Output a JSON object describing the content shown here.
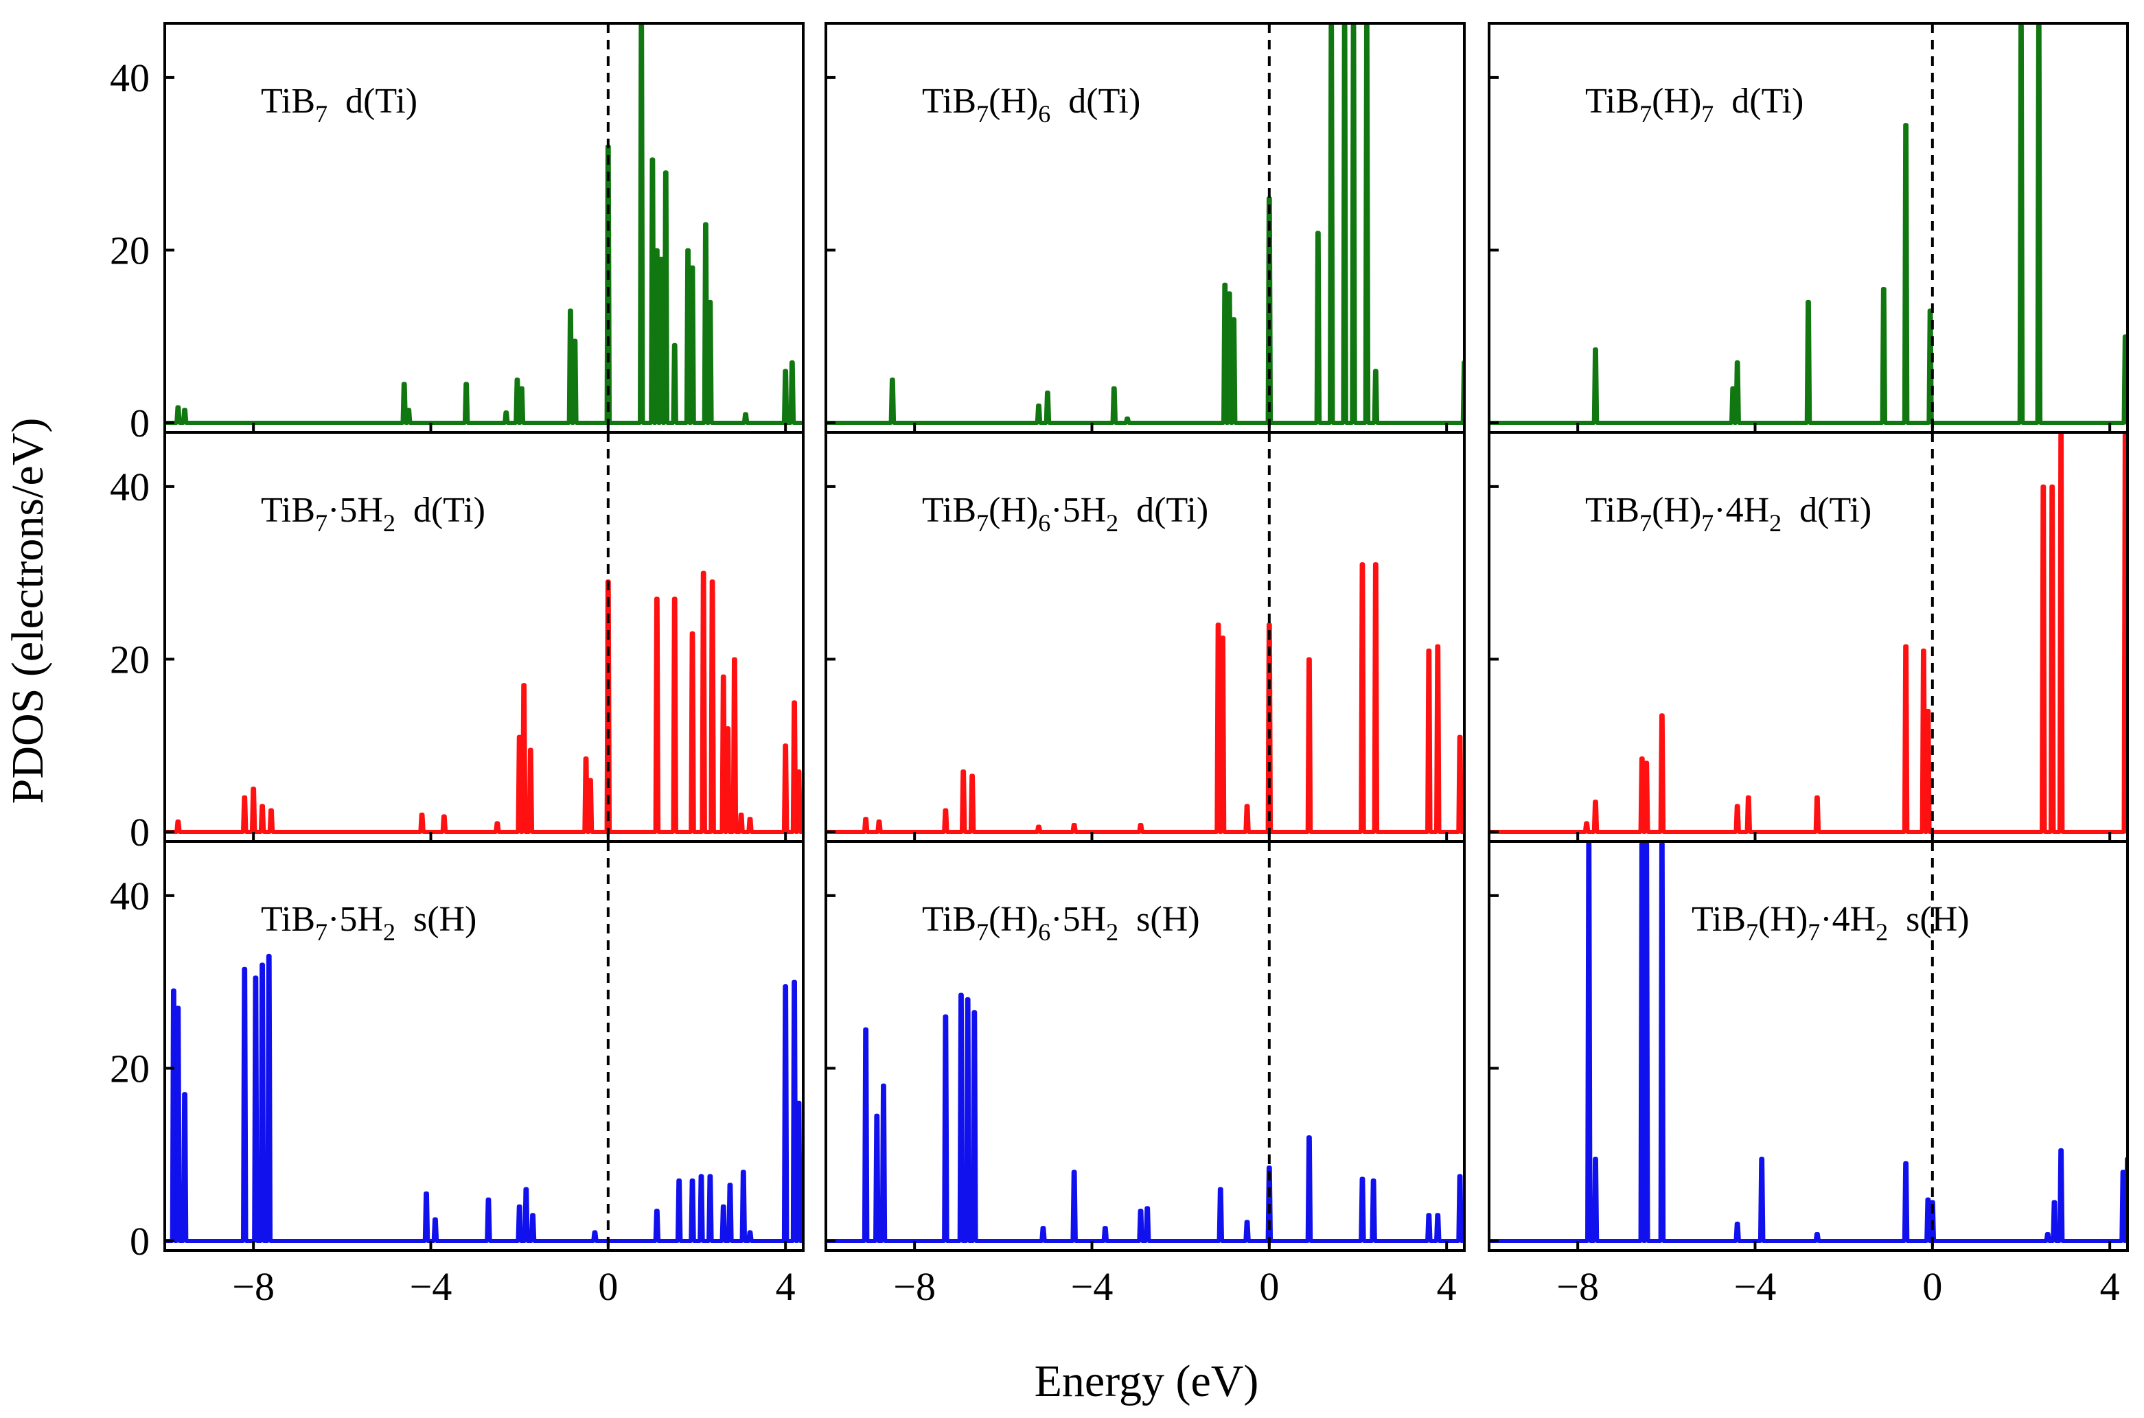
{
  "figure": {
    "ylabel": "PDOS (electrons/eV)",
    "xlabel": "Energy (eV)"
  },
  "chart_data": [
    {
      "type": "line",
      "row": 0,
      "col": 0,
      "color": "#117711",
      "title": "TiB7 d(Ti)",
      "label_main": "TiB",
      "label_sub1": "7",
      "label_rest": "  d(Ti)",
      "xlim": [
        -10,
        4.4
      ],
      "ylim": [
        0,
        45
      ],
      "xticks": [
        -8,
        -4,
        0,
        4
      ],
      "yticks": [
        0,
        20,
        40
      ],
      "xticklabels": [
        "−8",
        "−4",
        "0",
        "4"
      ],
      "yticklabels": [
        "0",
        "20",
        "40"
      ],
      "fermi_level": 0,
      "peaks": [
        [
          -9.7,
          1.8
        ],
        [
          -9.55,
          1.5
        ],
        [
          -4.6,
          4.5
        ],
        [
          -4.5,
          1.5
        ],
        [
          -3.2,
          4.5
        ],
        [
          -2.3,
          1.2
        ],
        [
          -2.05,
          5
        ],
        [
          -1.95,
          4
        ],
        [
          -0.85,
          13
        ],
        [
          -0.75,
          9.5
        ],
        [
          0,
          32
        ],
        [
          0.75,
          46
        ],
        [
          1.0,
          30.5
        ],
        [
          1.1,
          20
        ],
        [
          1.2,
          19
        ],
        [
          1.3,
          29
        ],
        [
          1.5,
          9
        ],
        [
          1.8,
          20
        ],
        [
          1.9,
          18
        ],
        [
          2.2,
          23
        ],
        [
          2.3,
          14
        ],
        [
          3.1,
          1
        ],
        [
          4.0,
          6
        ],
        [
          4.15,
          7
        ]
      ]
    },
    {
      "type": "line",
      "row": 0,
      "col": 1,
      "color": "#117711",
      "title": "TiB7(H)6 d(Ti)",
      "label_main": "TiB",
      "label_sub1": "7",
      "label_mid": "(H)",
      "label_sub2": "6",
      "label_rest": "  d(Ti)",
      "xlim": [
        -10,
        4.4
      ],
      "ylim": [
        0,
        45
      ],
      "xticks": [
        -8,
        -4,
        0,
        4
      ],
      "yticks": [
        0,
        20,
        40
      ],
      "xticklabels": [
        "−8",
        "−4",
        "0",
        "4"
      ],
      "yticklabels": [
        "0",
        "20",
        "40"
      ],
      "fermi_level": 0,
      "peaks": [
        [
          -8.5,
          5
        ],
        [
          -5.2,
          2
        ],
        [
          -5.0,
          3.5
        ],
        [
          -3.5,
          4
        ],
        [
          -3.2,
          0.5
        ],
        [
          -1.0,
          16
        ],
        [
          -0.9,
          15
        ],
        [
          -0.8,
          12
        ],
        [
          0,
          26
        ],
        [
          1.1,
          22
        ],
        [
          1.4,
          46
        ],
        [
          1.7,
          46
        ],
        [
          1.9,
          46
        ],
        [
          2.2,
          46
        ],
        [
          2.4,
          6
        ],
        [
          4.4,
          7
        ]
      ]
    },
    {
      "type": "line",
      "row": 0,
      "col": 2,
      "color": "#117711",
      "title": "TiB7(H)7 d(Ti)",
      "label_main": "TiB",
      "label_sub1": "7",
      "label_mid": "(H)",
      "label_sub2": "7",
      "label_rest": "  d(Ti)",
      "xlim": [
        -10,
        4.4
      ],
      "ylim": [
        0,
        45
      ],
      "xticks": [
        -8,
        -4,
        0,
        4
      ],
      "yticks": [
        0,
        20,
        40
      ],
      "xticklabels": [
        "−8",
        "−4",
        "0",
        "4"
      ],
      "yticklabels": [
        "0",
        "20",
        "40"
      ],
      "fermi_level": 0,
      "peaks": [
        [
          -7.6,
          8.5
        ],
        [
          -4.5,
          4
        ],
        [
          -4.4,
          7
        ],
        [
          -2.8,
          14
        ],
        [
          -1.1,
          15.5
        ],
        [
          -0.6,
          34.5
        ],
        [
          -0.05,
          13
        ],
        [
          2.0,
          46
        ],
        [
          2.4,
          46
        ],
        [
          4.35,
          10
        ]
      ]
    },
    {
      "type": "line",
      "row": 1,
      "col": 0,
      "color": "#ff1111",
      "title": "TiB7·5H2 d(Ti)",
      "label_main": "TiB",
      "label_sub1": "7",
      "label_mid": "·5H",
      "label_sub2": "2",
      "label_rest": "  d(Ti)",
      "xlim": [
        -10,
        4.4
      ],
      "ylim": [
        0,
        45
      ],
      "xticks": [
        -8,
        -4,
        0,
        4
      ],
      "yticks": [
        0,
        20,
        40
      ],
      "xticklabels": [
        "−8",
        "−4",
        "0",
        "4"
      ],
      "yticklabels": [
        "0",
        "20",
        "40"
      ],
      "fermi_level": 0,
      "peaks": [
        [
          -9.7,
          1.2
        ],
        [
          -8.2,
          4
        ],
        [
          -8.0,
          5
        ],
        [
          -7.8,
          3
        ],
        [
          -7.6,
          2.5
        ],
        [
          -4.2,
          2
        ],
        [
          -3.7,
          1.8
        ],
        [
          -2.5,
          1
        ],
        [
          -2.0,
          11
        ],
        [
          -1.9,
          17
        ],
        [
          -1.75,
          9.5
        ],
        [
          -0.5,
          8.5
        ],
        [
          -0.4,
          6
        ],
        [
          0,
          29
        ],
        [
          1.1,
          27
        ],
        [
          1.5,
          27
        ],
        [
          1.9,
          23
        ],
        [
          2.15,
          30
        ],
        [
          2.35,
          29
        ],
        [
          2.6,
          18
        ],
        [
          2.7,
          12
        ],
        [
          2.85,
          20
        ],
        [
          3.0,
          2
        ],
        [
          3.2,
          1.5
        ],
        [
          4.0,
          10
        ],
        [
          4.2,
          15
        ],
        [
          4.3,
          7
        ]
      ]
    },
    {
      "type": "line",
      "row": 1,
      "col": 1,
      "color": "#ff1111",
      "title": "TiB7(H)6·5H2 d(Ti)",
      "label_main": "TiB",
      "label_sub1": "7",
      "label_mid": "(H)",
      "label_sub2": "6",
      "label_mid2": "·5H",
      "label_sub3": "2",
      "label_rest": "  d(Ti)",
      "xlim": [
        -10,
        4.4
      ],
      "ylim": [
        0,
        45
      ],
      "xticks": [
        -8,
        -4,
        0,
        4
      ],
      "yticks": [
        0,
        20,
        40
      ],
      "xticklabels": [
        "−8",
        "−4",
        "0",
        "4"
      ],
      "yticklabels": [
        "0",
        "20",
        "40"
      ],
      "fermi_level": 0,
      "peaks": [
        [
          -9.1,
          1.5
        ],
        [
          -8.8,
          1.2
        ],
        [
          -7.3,
          2.5
        ],
        [
          -6.9,
          7
        ],
        [
          -6.7,
          6.5
        ],
        [
          -5.2,
          0.6
        ],
        [
          -4.4,
          0.8
        ],
        [
          -2.9,
          0.8
        ],
        [
          -1.15,
          24
        ],
        [
          -1.05,
          22.5
        ],
        [
          -0.5,
          3
        ],
        [
          0,
          24
        ],
        [
          0.9,
          20
        ],
        [
          2.1,
          31
        ],
        [
          2.4,
          31
        ],
        [
          3.6,
          21
        ],
        [
          3.8,
          21.5
        ],
        [
          4.3,
          11
        ]
      ]
    },
    {
      "type": "line",
      "row": 1,
      "col": 2,
      "color": "#ff1111",
      "title": "TiB7(H)7·4H2 d(Ti)",
      "label_main": "TiB",
      "label_sub1": "7",
      "label_mid": "(H)",
      "label_sub2": "7",
      "label_mid2": "·4H",
      "label_sub3": "2",
      "label_rest": "  d(Ti)",
      "xlim": [
        -10,
        4.4
      ],
      "ylim": [
        0,
        45
      ],
      "xticks": [
        -8,
        -4,
        0,
        4
      ],
      "yticks": [
        0,
        20,
        40
      ],
      "xticklabels": [
        "−8",
        "−4",
        "0",
        "4"
      ],
      "yticklabels": [
        "0",
        "20",
        "40"
      ],
      "fermi_level": 0,
      "peaks": [
        [
          -7.8,
          1
        ],
        [
          -7.6,
          3.5
        ],
        [
          -6.55,
          8.5
        ],
        [
          -6.45,
          8
        ],
        [
          -6.1,
          13.5
        ],
        [
          -4.4,
          3
        ],
        [
          -4.15,
          4
        ],
        [
          -2.6,
          4
        ],
        [
          -0.6,
          21.5
        ],
        [
          -0.2,
          21
        ],
        [
          -0.1,
          14
        ],
        [
          2.5,
          40
        ],
        [
          2.7,
          40
        ],
        [
          2.9,
          46
        ],
        [
          4.35,
          46
        ]
      ]
    },
    {
      "type": "line",
      "row": 2,
      "col": 0,
      "color": "#1111ee",
      "title": "TiB7·5H2 s(H)",
      "label_main": "TiB",
      "label_sub1": "7",
      "label_mid": "·5H",
      "label_sub2": "2",
      "label_rest": "  s(H)",
      "xlim": [
        -10,
        4.4
      ],
      "ylim": [
        0,
        45
      ],
      "xticks": [
        -8,
        -4,
        0,
        4
      ],
      "yticks": [
        0,
        20,
        40
      ],
      "xticklabels": [
        "−8",
        "−4",
        "0",
        "4"
      ],
      "yticklabels": [
        "0",
        "20",
        "40"
      ],
      "fermi_level": 0,
      "peaks": [
        [
          -9.8,
          29
        ],
        [
          -9.7,
          27
        ],
        [
          -9.55,
          17
        ],
        [
          -8.2,
          31.5
        ],
        [
          -7.95,
          30.5
        ],
        [
          -7.8,
          32
        ],
        [
          -7.65,
          33
        ],
        [
          -4.1,
          5.5
        ],
        [
          -3.9,
          2.5
        ],
        [
          -2.7,
          4.8
        ],
        [
          -2.0,
          4
        ],
        [
          -1.85,
          6
        ],
        [
          -1.7,
          3
        ],
        [
          -0.3,
          1
        ],
        [
          1.1,
          3.5
        ],
        [
          1.6,
          7
        ],
        [
          1.9,
          7
        ],
        [
          2.1,
          7.5
        ],
        [
          2.3,
          7.5
        ],
        [
          2.6,
          4
        ],
        [
          2.75,
          6.5
        ],
        [
          3.05,
          8
        ],
        [
          3.2,
          1
        ],
        [
          4.0,
          29.5
        ],
        [
          4.2,
          30
        ],
        [
          4.3,
          16
        ]
      ]
    },
    {
      "type": "line",
      "row": 2,
      "col": 1,
      "color": "#1111ee",
      "title": "TiB7(H)6·5H2 s(H)",
      "label_main": "TiB",
      "label_sub1": "7",
      "label_mid": "(H)",
      "label_sub2": "6",
      "label_mid2": "·5H",
      "label_sub3": "2",
      "label_rest": "  s(H)",
      "xlim": [
        -10,
        4.4
      ],
      "ylim": [
        0,
        45
      ],
      "xticks": [
        -8,
        -4,
        0,
        4
      ],
      "yticks": [
        0,
        20,
        40
      ],
      "xticklabels": [
        "−8",
        "−4",
        "0",
        "4"
      ],
      "yticklabels": [
        "0",
        "20",
        "40"
      ],
      "fermi_level": 0,
      "peaks": [
        [
          -9.1,
          24.5
        ],
        [
          -8.85,
          14.5
        ],
        [
          -8.7,
          18
        ],
        [
          -7.3,
          26
        ],
        [
          -6.95,
          28.5
        ],
        [
          -6.8,
          28
        ],
        [
          -6.65,
          26.5
        ],
        [
          -5.1,
          1.5
        ],
        [
          -4.4,
          8
        ],
        [
          -3.7,
          1.5
        ],
        [
          -2.9,
          3.5
        ],
        [
          -2.75,
          3.8
        ],
        [
          -1.1,
          6
        ],
        [
          -0.5,
          2.2
        ],
        [
          0,
          8.5
        ],
        [
          0.9,
          12
        ],
        [
          2.1,
          7.2
        ],
        [
          2.35,
          7
        ],
        [
          3.6,
          3
        ],
        [
          3.8,
          3
        ],
        [
          4.3,
          7.5
        ]
      ]
    },
    {
      "type": "line",
      "row": 2,
      "col": 2,
      "color": "#1111ee",
      "title": "TiB7(H)7·4H2 s(H)",
      "label_main": "TiB",
      "label_sub1": "7",
      "label_mid": "(H)",
      "label_sub2": "7",
      "label_mid2": "·4H",
      "label_sub3": "2",
      "label_rest": "  s(H)",
      "xlim": [
        -10,
        4.4
      ],
      "ylim": [
        0,
        45
      ],
      "xticks": [
        -8,
        -4,
        0,
        4
      ],
      "yticks": [
        0,
        20,
        40
      ],
      "xticklabels": [
        "−8",
        "−4",
        "0",
        "4"
      ],
      "yticklabels": [
        "0",
        "20",
        "40"
      ],
      "fermi_level": 0,
      "peaks": [
        [
          -7.75,
          46
        ],
        [
          -7.6,
          9.5
        ],
        [
          -6.55,
          46
        ],
        [
          -6.45,
          46
        ],
        [
          -6.1,
          46
        ],
        [
          -4.4,
          2
        ],
        [
          -3.85,
          9.5
        ],
        [
          -2.6,
          0.8
        ],
        [
          -0.6,
          9
        ],
        [
          -0.1,
          4.8
        ],
        [
          0,
          4.5
        ],
        [
          2.6,
          0.8
        ],
        [
          2.75,
          4.5
        ],
        [
          2.9,
          10.5
        ],
        [
          4.3,
          8
        ],
        [
          4.4,
          9.5
        ]
      ]
    }
  ]
}
